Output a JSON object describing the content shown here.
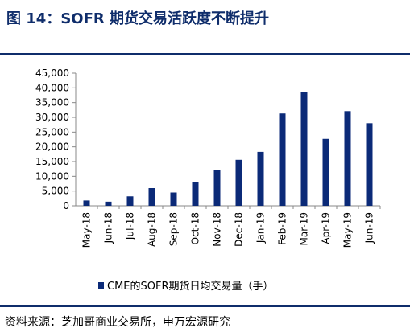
{
  "header": {
    "title": "图 14：SOFR 期货交易活跃度不断提升"
  },
  "footer": {
    "source": "资料来源：芝加哥商业交易所，申万宏源研究"
  },
  "colors": {
    "bar": "#0b2a78",
    "accent": "#0f2d6b"
  },
  "chart_data": {
    "type": "bar",
    "categories": [
      "May-18",
      "Jun-18",
      "Jul-18",
      "Aug-18",
      "Sep-18",
      "Oct-18",
      "Nov-18",
      "Dec-18",
      "Jan-19",
      "Feb-19",
      "Mar-19",
      "Apr-19",
      "May-19",
      "Jun-19"
    ],
    "series": [
      {
        "name": "CME的SOFR期货日均交易量（手）",
        "values": [
          1800,
          1400,
          3200,
          6000,
          4500,
          8000,
          12000,
          15600,
          18300,
          31300,
          38600,
          22700,
          32100,
          28000
        ]
      }
    ],
    "yticks": [
      "0",
      "5,000",
      "10,000",
      "15,000",
      "20,000",
      "25,000",
      "30,000",
      "35,000",
      "40,000",
      "45,000"
    ],
    "ylim": [
      0,
      45000
    ],
    "grid": false,
    "legend": "bottom"
  }
}
